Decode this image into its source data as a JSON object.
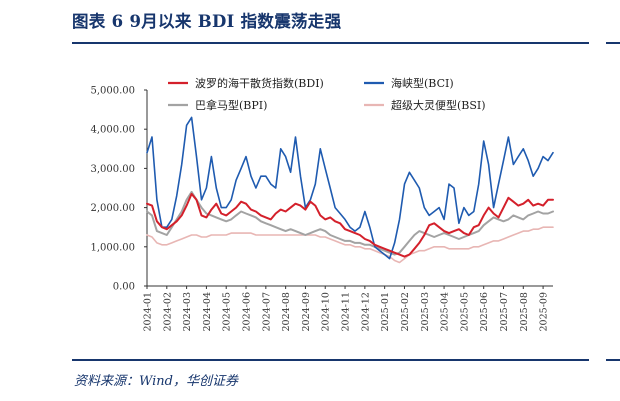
{
  "header": {
    "title": "图表 6   9月以来 BDI 指数震荡走强"
  },
  "footer": {
    "source": "资料来源：Wind，华创证券"
  },
  "colors": {
    "BDI": "#d4202b",
    "BCI": "#1f5bb0",
    "BPI": "#a3a3a3",
    "BSI": "#e8b6b4",
    "rule": "#17366d"
  },
  "chart_data": {
    "type": "line",
    "ylim": [
      0,
      5000
    ],
    "yticks": [
      "0.00",
      "1,000.00",
      "2,000.00",
      "3,000.00",
      "4,000.00",
      "5,000.00"
    ],
    "ytick_values": [
      0,
      1000,
      2000,
      3000,
      4000,
      5000
    ],
    "xticks": [
      "2024-01",
      "2024-02",
      "2024-03",
      "2024-04",
      "2024-05",
      "2024-06",
      "2024-07",
      "2024-08",
      "2024-09",
      "2024-10",
      "2024-11",
      "2024-12",
      "2025-01",
      "2025-02",
      "2025-03",
      "2025-04",
      "2025-05",
      "2025-06",
      "2025-07",
      "2025-08",
      "2025-09"
    ],
    "x": [
      0,
      0.25,
      0.5,
      0.75,
      1,
      1.25,
      1.5,
      1.75,
      2,
      2.25,
      2.5,
      2.75,
      3,
      3.25,
      3.5,
      3.75,
      4,
      4.25,
      4.5,
      4.75,
      5,
      5.25,
      5.5,
      5.75,
      6,
      6.25,
      6.5,
      6.75,
      7,
      7.25,
      7.5,
      7.75,
      8,
      8.25,
      8.5,
      8.75,
      9,
      9.25,
      9.5,
      9.75,
      10,
      10.25,
      10.5,
      10.75,
      11,
      11.25,
      11.5,
      11.75,
      12,
      12.25,
      12.5,
      12.75,
      13,
      13.25,
      13.5,
      13.75,
      14,
      14.25,
      14.5,
      14.75,
      15,
      15.25,
      15.5,
      15.75,
      16,
      16.25,
      16.5,
      16.75,
      17,
      17.25,
      17.5,
      17.75,
      18,
      18.25,
      18.5,
      18.75,
      19,
      19.25,
      19.5,
      19.75,
      20,
      20.25,
      20.5
    ],
    "legend": "top",
    "grid": false,
    "series": [
      {
        "name": "波罗的海干散货指数(BDI)",
        "color": "#d4202b",
        "width": 2,
        "values": [
          2100,
          2050,
          1650,
          1500,
          1450,
          1550,
          1650,
          1800,
          2050,
          2350,
          2200,
          1800,
          1750,
          1950,
          2100,
          1850,
          1800,
          1900,
          2000,
          2150,
          2100,
          1950,
          1900,
          1800,
          1750,
          1700,
          1850,
          1950,
          1900,
          2000,
          2100,
          2050,
          1950,
          2150,
          2050,
          1800,
          1700,
          1750,
          1650,
          1600,
          1450,
          1400,
          1350,
          1300,
          1200,
          1150,
          1050,
          1000,
          950,
          900,
          850,
          800,
          750,
          800,
          950,
          1100,
          1300,
          1550,
          1600,
          1500,
          1400,
          1350,
          1400,
          1450,
          1350,
          1300,
          1500,
          1550,
          1800,
          2000,
          1850,
          1750,
          2000,
          2250,
          2150,
          2050,
          2100,
          2200,
          2050,
          2100,
          2050,
          2200,
          2200
        ]
      },
      {
        "name": "海峡型(BCI)",
        "color": "#1f5bb0",
        "width": 1.6,
        "values": [
          3400,
          3800,
          2200,
          1500,
          1500,
          1700,
          2300,
          3100,
          4100,
          4300,
          3300,
          2200,
          2500,
          3300,
          2500,
          2000,
          2000,
          2200,
          2700,
          3000,
          3300,
          2800,
          2500,
          2800,
          2800,
          2600,
          2500,
          3500,
          3300,
          2900,
          3800,
          2800,
          2000,
          2200,
          2600,
          3500,
          3000,
          2500,
          2000,
          1850,
          1700,
          1500,
          1400,
          1500,
          1900,
          1500,
          1000,
          900,
          800,
          700,
          1100,
          1700,
          2600,
          2900,
          2700,
          2500,
          2000,
          1800,
          1900,
          2000,
          1700,
          2600,
          2500,
          1600,
          2000,
          1800,
          1900,
          2600,
          3700,
          3100,
          2000,
          2600,
          3200,
          3800,
          3100,
          3300,
          3500,
          3200,
          2800,
          3000,
          3300,
          3200,
          3400
        ]
      },
      {
        "name": "巴拿马型(BPI)",
        "color": "#a3a3a3",
        "width": 2,
        "values": [
          1900,
          1800,
          1400,
          1350,
          1300,
          1500,
          1700,
          1900,
          2200,
          2400,
          2200,
          2000,
          1850,
          1800,
          1750,
          1700,
          1650,
          1700,
          1800,
          1900,
          1850,
          1800,
          1750,
          1650,
          1600,
          1550,
          1500,
          1450,
          1400,
          1450,
          1400,
          1350,
          1300,
          1350,
          1400,
          1450,
          1400,
          1300,
          1250,
          1200,
          1150,
          1150,
          1100,
          1100,
          1050,
          1050,
          1000,
          950,
          900,
          850,
          800,
          850,
          1000,
          1150,
          1300,
          1400,
          1350,
          1300,
          1250,
          1300,
          1350,
          1300,
          1250,
          1200,
          1250,
          1300,
          1350,
          1400,
          1550,
          1650,
          1750,
          1700,
          1650,
          1700,
          1800,
          1750,
          1700,
          1800,
          1850,
          1900,
          1850,
          1850,
          1900
        ]
      },
      {
        "name": "超级大灵便型(BSI)",
        "color": "#e8b6b4",
        "width": 1.6,
        "values": [
          1300,
          1250,
          1100,
          1050,
          1050,
          1100,
          1150,
          1200,
          1250,
          1300,
          1300,
          1250,
          1250,
          1300,
          1300,
          1300,
          1300,
          1350,
          1350,
          1350,
          1350,
          1350,
          1300,
          1300,
          1300,
          1300,
          1300,
          1300,
          1300,
          1300,
          1300,
          1300,
          1300,
          1300,
          1300,
          1250,
          1250,
          1200,
          1150,
          1100,
          1050,
          1050,
          1000,
          1000,
          950,
          950,
          900,
          850,
          800,
          750,
          650,
          600,
          700,
          800,
          850,
          900,
          900,
          950,
          1000,
          1000,
          1000,
          950,
          950,
          950,
          950,
          950,
          1000,
          1000,
          1050,
          1100,
          1150,
          1150,
          1200,
          1250,
          1300,
          1350,
          1400,
          1400,
          1450,
          1450,
          1500,
          1500,
          1500
        ]
      }
    ]
  }
}
